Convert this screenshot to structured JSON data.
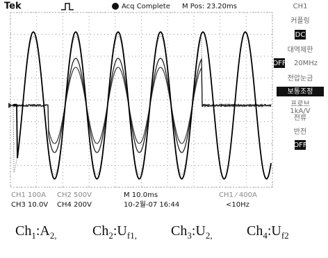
{
  "header": {
    "brand": "Tek",
    "status": "Acq Complete",
    "position": "M Pos: 23.20ms"
  },
  "menu": [
    "CH1",
    "커플링",
    "DC",
    "대역제한",
    "OFF",
    "20MHz",
    "전압눈금",
    "보통조정",
    "프로브",
    "1kA/V",
    "전류",
    "반전",
    "OFF"
  ],
  "readout": {
    "row1": [
      "CH1 100A",
      "CH2 500V",
      "M 10.0ms",
      "CH1 ⁄ 400A"
    ],
    "row2": [
      "CH3 10.0V",
      "CH4 200V",
      "10-2월-07 16:44",
      "<10Hz"
    ]
  },
  "caption": [
    {
      "main": "Ch",
      "sub1": "1",
      "sep": ":",
      "main2": "A",
      "sub2": "2,"
    },
    {
      "main": "Ch",
      "sub1": "2",
      "sep": ":",
      "main2": "U",
      "sub2": "f1,"
    },
    {
      "main": "Ch",
      "sub1": "3",
      "sep": ":",
      "main2": "U",
      "sub2": "2,"
    },
    {
      "main": "Ch",
      "sub1": "4",
      "sep": ":",
      "main2": "U",
      "sub2": "f2"
    }
  ]
}
